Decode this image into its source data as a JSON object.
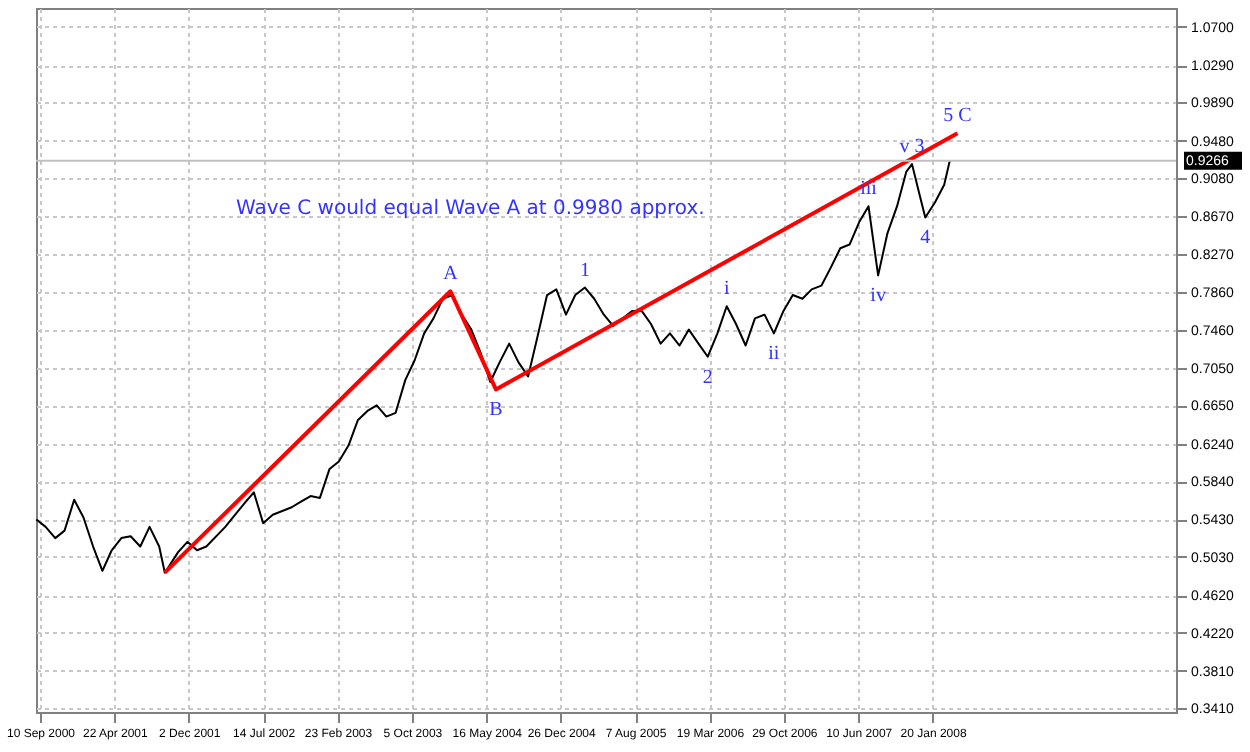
{
  "chart_data": {
    "type": "line",
    "series": [
      {
        "color": "#000000",
        "x": [
          "2000-08-30",
          "2000-09-27",
          "2000-10-26",
          "2000-11-23",
          "2000-12-22",
          "2001-01-19",
          "2001-02-17",
          "2001-03-17",
          "2001-04-14",
          "2001-05-13",
          "2001-06-10",
          "2001-07-09",
          "2001-08-06",
          "2001-09-04",
          "2001-09-21",
          "2001-10-31",
          "2001-11-28",
          "2001-12-27",
          "2002-01-24",
          "2002-03-22",
          "2002-05-18",
          "2002-06-16",
          "2002-07-14",
          "2002-08-12",
          "2002-10-08",
          "2002-11-05",
          "2002-12-04",
          "2003-01-01",
          "2003-01-30",
          "2003-02-27",
          "2003-03-28",
          "2003-04-25",
          "2003-05-24",
          "2003-06-21",
          "2003-07-20",
          "2003-08-17",
          "2003-09-15",
          "2003-10-13",
          "2003-11-11",
          "2003-12-09",
          "2004-01-06",
          "2004-02-04",
          "2004-03-03",
          "2004-04-01",
          "2004-04-29",
          "2004-05-28",
          "2004-06-25",
          "2004-07-24",
          "2004-08-21",
          "2004-09-19",
          "2004-10-17",
          "2004-11-15",
          "2004-12-13",
          "2005-01-11",
          "2005-02-08",
          "2005-03-09",
          "2005-04-06",
          "2005-05-05",
          "2005-06-02",
          "2005-07-01",
          "2005-07-29",
          "2005-08-27",
          "2005-09-24",
          "2005-10-23",
          "2005-11-20",
          "2005-12-19",
          "2006-01-16",
          "2006-02-14",
          "2006-03-14",
          "2006-04-12",
          "2006-05-10",
          "2006-06-07",
          "2006-07-06",
          "2006-08-03",
          "2006-09-01",
          "2006-09-29",
          "2006-10-28",
          "2006-11-25",
          "2006-12-24",
          "2007-01-21",
          "2007-02-19",
          "2007-03-19",
          "2007-04-17",
          "2007-05-15",
          "2007-06-13",
          "2007-07-11",
          "2007-08-09",
          "2007-09-06",
          "2007-10-05",
          "2007-11-02",
          "2007-11-19",
          "2007-12-12",
          "2007-12-29",
          "2008-01-27",
          "2008-02-24",
          "2008-03-12"
        ],
        "values": [
          0.543,
          0.535,
          0.523,
          0.531,
          0.564,
          0.545,
          0.514,
          0.488,
          0.51,
          0.523,
          0.525,
          0.514,
          0.535,
          0.514,
          0.486,
          0.508,
          0.519,
          0.51,
          0.514,
          0.535,
          0.56,
          0.572,
          0.539,
          0.548,
          0.556,
          0.562,
          0.568,
          0.566,
          0.597,
          0.605,
          0.622,
          0.649,
          0.659,
          0.665,
          0.653,
          0.657,
          0.692,
          0.713,
          0.742,
          0.758,
          0.779,
          0.783,
          0.762,
          0.746,
          0.721,
          0.69,
          0.711,
          0.731,
          0.711,
          0.696,
          0.738,
          0.783,
          0.789,
          0.762,
          0.783,
          0.791,
          0.779,
          0.762,
          0.75,
          0.758,
          0.766,
          0.766,
          0.752,
          0.731,
          0.742,
          0.729,
          0.746,
          0.731,
          0.717,
          0.742,
          0.771,
          0.752,
          0.729,
          0.758,
          0.762,
          0.742,
          0.766,
          0.783,
          0.779,
          0.789,
          0.793,
          0.812,
          0.833,
          0.837,
          0.861,
          0.878,
          0.804,
          0.849,
          0.878,
          0.915,
          0.923,
          0.89,
          0.866,
          0.882,
          0.901,
          0.927
        ]
      },
      {
        "color": "#ff0000",
        "x": [
          "2001-09-21",
          "2004-01-29",
          "2004-06-14",
          "2008-04-04"
        ],
        "values": [
          0.486,
          0.787,
          0.682,
          0.956
        ]
      }
    ],
    "xlim": [
      "2000-08-29",
      "2010-01-22"
    ],
    "xticks": [
      {
        "value": "2000-09-10",
        "label": "10 Sep 2000"
      },
      {
        "value": "2001-04-22",
        "label": "22 Apr 2001"
      },
      {
        "value": "2001-12-02",
        "label": "2 Dec 2001"
      },
      {
        "value": "2002-07-14",
        "label": "14 Jul 2002"
      },
      {
        "value": "2003-02-23",
        "label": "23 Feb 2003"
      },
      {
        "value": "2003-10-05",
        "label": "5 Oct 2003"
      },
      {
        "value": "2004-05-16",
        "label": "16 May 2004"
      },
      {
        "value": "2004-12-26",
        "label": "26 Dec 2004"
      },
      {
        "value": "2005-08-07",
        "label": "7 Aug 2005"
      },
      {
        "value": "2006-03-19",
        "label": "19 Mar 2006"
      },
      {
        "value": "2006-10-29",
        "label": "29 Oct 2006"
      },
      {
        "value": "2007-06-10",
        "label": "10 Jun 2007"
      },
      {
        "value": "2008-01-20",
        "label": "20 Jan 2008"
      }
    ],
    "ylim": [
      0.337,
      1.09
    ],
    "yticks": [
      {
        "value": 0.341,
        "label": "0.3410"
      },
      {
        "value": 0.381,
        "label": "0.3810"
      },
      {
        "value": 0.422,
        "label": "0.4220"
      },
      {
        "value": 0.462,
        "label": "0.4620"
      },
      {
        "value": 0.503,
        "label": "0.5030"
      },
      {
        "value": 0.543,
        "label": "0.5430"
      },
      {
        "value": 0.584,
        "label": "0.5840"
      },
      {
        "value": 0.624,
        "label": "0.6240"
      },
      {
        "value": 0.665,
        "label": "0.6650"
      },
      {
        "value": 0.705,
        "label": "0.7050"
      },
      {
        "value": 0.746,
        "label": "0.7460"
      },
      {
        "value": 0.786,
        "label": "0.7860"
      },
      {
        "value": 0.827,
        "label": "0.8270"
      },
      {
        "value": 0.867,
        "label": "0.8670"
      },
      {
        "value": 0.908,
        "label": "0.9080"
      },
      {
        "value": 0.948,
        "label": "0.9480"
      },
      {
        "value": 0.989,
        "label": "0.9890"
      },
      {
        "value": 1.029,
        "label": "1.0290"
      },
      {
        "value": 1.07,
        "label": "1.0700"
      }
    ],
    "ref_lines": [
      {
        "axis": "y",
        "value": 0.9266,
        "label": "0.9266",
        "color": "#c0c0c0"
      }
    ],
    "annotations": [
      "Wave C would equal Wave A at 0.9980 approx.",
      {
        "text": "A",
        "x": "2004-01-29",
        "y": 0.787
      },
      {
        "text": "B",
        "x": "2004-06-14",
        "y": 0.682
      },
      {
        "text": "1",
        "x": "2005-03-09",
        "y": 0.791
      },
      {
        "text": "2",
        "x": "2006-03-14",
        "y": 0.717
      },
      {
        "text": "i",
        "x": "2006-05-10",
        "y": 0.771
      },
      {
        "text": "ii",
        "x": "2006-09-29",
        "y": 0.742
      },
      {
        "text": "iii",
        "x": "2007-07-11",
        "y": 0.878
      },
      {
        "text": "iv",
        "x": "2007-08-09",
        "y": 0.804
      },
      {
        "text": "v 3",
        "x": "2007-11-19",
        "y": 0.923
      },
      {
        "text": "4",
        "x": "2007-12-29",
        "y": 0.866
      },
      {
        "text": "5 C",
        "x": "2008-04-04",
        "y": 0.956
      }
    ],
    "grid": true,
    "marker": "none",
    "line_style": "solid"
  }
}
